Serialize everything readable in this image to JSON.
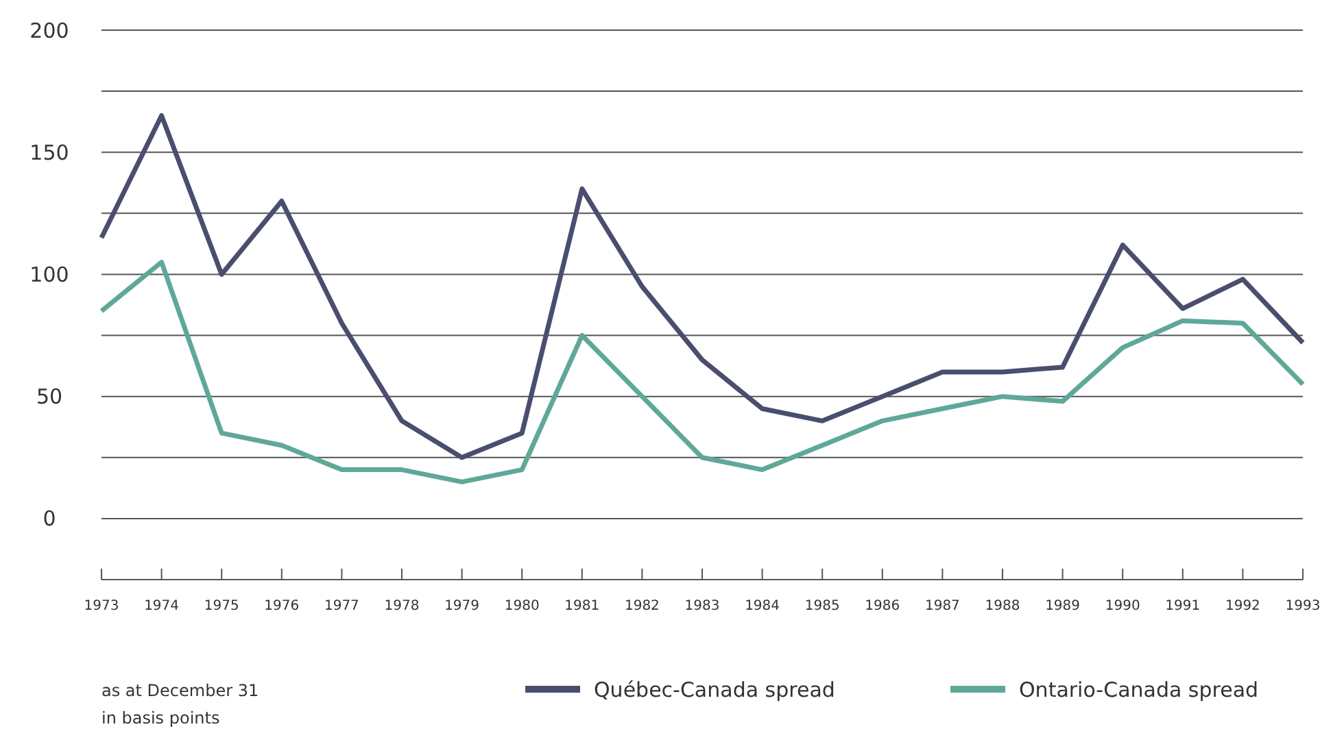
{
  "chart_data": {
    "type": "line",
    "x": [
      1973,
      1974,
      1975,
      1976,
      1977,
      1978,
      1979,
      1980,
      1981,
      1982,
      1983,
      1984,
      1985,
      1986,
      1987,
      1988,
      1989,
      1990,
      1991,
      1992,
      1993
    ],
    "series": [
      {
        "name": "Québec-Canada spread",
        "color": "#4a4e6e",
        "values": [
          115,
          165,
          100,
          130,
          80,
          40,
          25,
          35,
          135,
          95,
          65,
          45,
          40,
          50,
          60,
          60,
          62,
          112,
          86,
          98,
          72
        ]
      },
      {
        "name": "Ontario-Canada spread",
        "color": "#5fa899",
        "values": [
          85,
          105,
          35,
          30,
          20,
          20,
          15,
          20,
          75,
          50,
          25,
          20,
          30,
          40,
          45,
          50,
          48,
          70,
          81,
          80,
          55
        ]
      }
    ],
    "xlim": [
      1973,
      1993
    ],
    "xticks": [
      1973,
      1974,
      1975,
      1976,
      1977,
      1978,
      1979,
      1980,
      1981,
      1982,
      1983,
      1984,
      1985,
      1986,
      1987,
      1988,
      1989,
      1990,
      1991,
      1992,
      1993
    ],
    "ylim": [
      -25,
      200
    ],
    "yticks": [
      {
        "value": -25,
        "label": null
      },
      0,
      {
        "value": 25,
        "label": null
      },
      50,
      {
        "value": 75,
        "label": null
      },
      100,
      {
        "value": 125,
        "label": null
      },
      150,
      {
        "value": 175,
        "label": null
      },
      200
    ],
    "grid": "y",
    "legend": "bottom",
    "marker": "none",
    "line_style": "solid",
    "annotations": [
      "as at December 31",
      "in basis points"
    ]
  }
}
